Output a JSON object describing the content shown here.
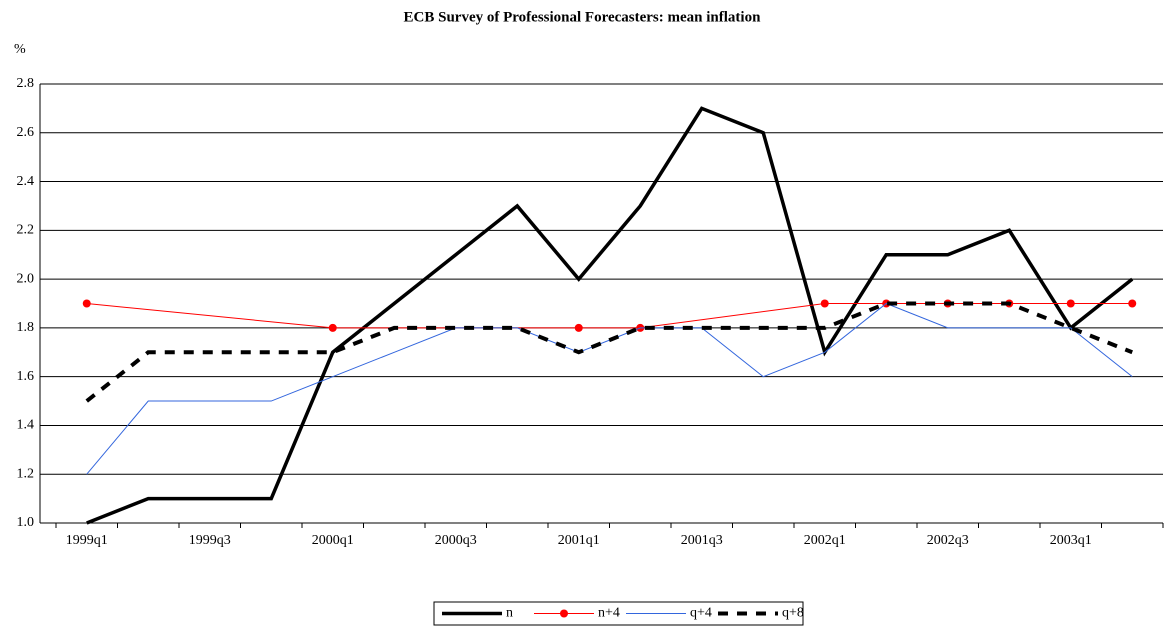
{
  "chart_data": {
    "type": "line",
    "title": "ECB Survey of Professional Forecasters: mean inflation",
    "y_label": "%",
    "categories": [
      "1999q1",
      null,
      "1999q3",
      null,
      "2000q1",
      null,
      "2000q3",
      null,
      "2001q1",
      null,
      "2001q3",
      null,
      "2002q1",
      null,
      "2002q3",
      null,
      "2003q1",
      null
    ],
    "series": [
      {
        "name": "n",
        "color": "#000000",
        "values": [
          1.0,
          1.1,
          1.1,
          1.1,
          1.7,
          1.9,
          2.1,
          2.3,
          2.0,
          2.3,
          2.7,
          2.6,
          1.7,
          2.1,
          2.1,
          2.2,
          1.8,
          2.0
        ]
      },
      {
        "name": "n+4",
        "color": "#ff0000",
        "values": [
          1.9,
          null,
          null,
          null,
          1.8,
          null,
          null,
          null,
          1.8,
          1.8,
          null,
          null,
          1.9,
          1.9,
          1.9,
          1.9,
          1.9,
          1.9
        ]
      },
      {
        "name": "q+4",
        "color": "#3366dd",
        "values": [
          1.2,
          1.5,
          1.5,
          1.5,
          1.6,
          1.7,
          1.8,
          1.8,
          1.7,
          1.8,
          1.8,
          1.6,
          1.7,
          1.9,
          1.8,
          1.8,
          1.8,
          1.6
        ]
      },
      {
        "name": "q+8",
        "color": "#000000",
        "values": [
          1.5,
          1.7,
          1.7,
          1.7,
          1.7,
          1.8,
          1.8,
          1.8,
          1.7,
          1.8,
          1.8,
          1.8,
          1.8,
          1.9,
          1.9,
          1.9,
          1.8,
          1.7
        ]
      }
    ],
    "ylim": [
      1.0,
      2.8
    ],
    "yticks": [
      {
        "value": 1.0,
        "label": "1.0"
      },
      1.2,
      1.4,
      1.6,
      1.8,
      {
        "value": 2.0,
        "label": "2.0"
      },
      2.2,
      2.4,
      2.6,
      2.8
    ],
    "grid": true,
    "legend": "bottom"
  }
}
